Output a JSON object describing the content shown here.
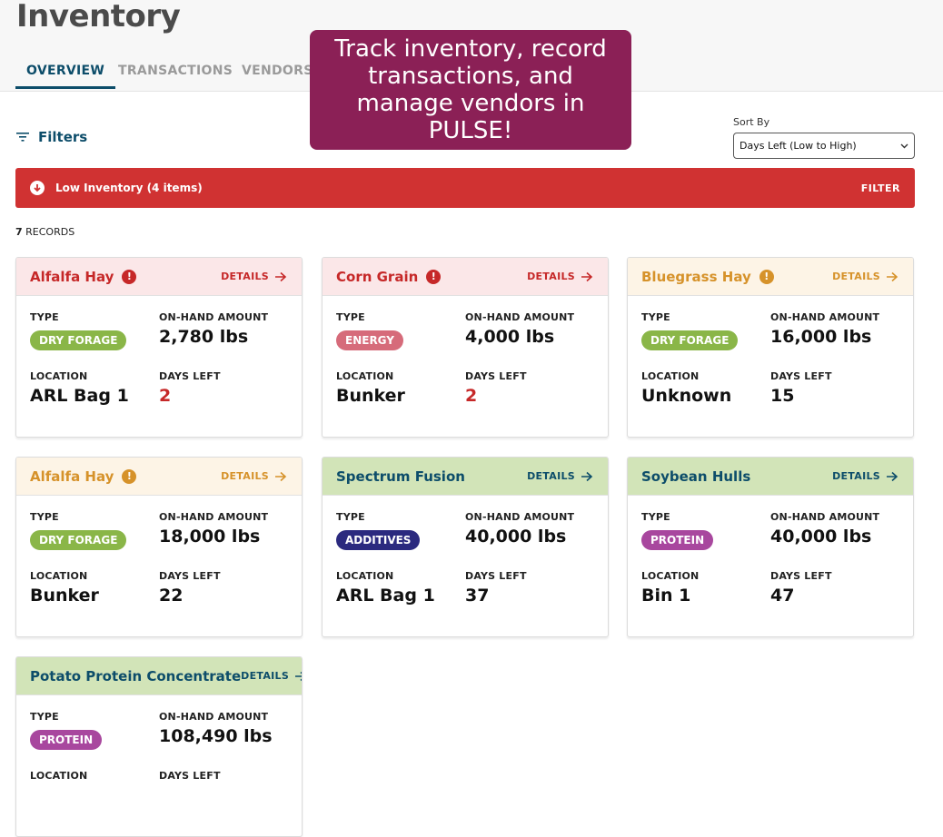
{
  "header": {
    "title": "Inventory",
    "tabs": [
      {
        "label": "OVERVIEW",
        "active": true
      },
      {
        "label": "TRANSACTIONS",
        "active": false
      },
      {
        "label": "VENDORS",
        "active": false
      }
    ]
  },
  "callout": {
    "text": "Track inventory, record transactions, and manage vendors in PULSE!"
  },
  "toolbar": {
    "filters_label": "Filters",
    "sort_label": "Sort By",
    "sort_value": "Days Left (Low to High)"
  },
  "alert": {
    "text": "Low Inventory (4 items)",
    "action": "FILTER"
  },
  "records": {
    "count": "7",
    "label": "RECORDS"
  },
  "labels": {
    "type": "TYPE",
    "on_hand": "ON-HAND AMOUNT",
    "location": "LOCATION",
    "days_left": "DAYS LEFT",
    "details": "DETAILS"
  },
  "colors": {
    "critical_head_bg": "#fbe7e8",
    "critical_title": "#c62828",
    "warning_head_bg": "#fdf4e6",
    "warning_title": "#d6922a",
    "normal_head_bg": "#d2e4b8",
    "normal_title": "#0d4d6a",
    "dry_forage": "#8ab648",
    "energy": "#d66b7a",
    "additives": "#2b2a7f",
    "protein": "#a8479e"
  },
  "cards": [
    {
      "name": "Alfalfa Hay",
      "status": "critical",
      "type": "DRY FORAGE",
      "type_key": "dry_forage",
      "on_hand": "2,780 lbs",
      "location": "ARL Bag 1",
      "days_left": "2"
    },
    {
      "name": "Corn Grain",
      "status": "critical",
      "type": "ENERGY",
      "type_key": "energy",
      "on_hand": "4,000 lbs",
      "location": "Bunker",
      "days_left": "2"
    },
    {
      "name": "Bluegrass Hay",
      "status": "warning",
      "type": "DRY FORAGE",
      "type_key": "dry_forage",
      "on_hand": "16,000 lbs",
      "location": "Unknown",
      "days_left": "15"
    },
    {
      "name": "Alfalfa Hay",
      "status": "warning",
      "type": "DRY FORAGE",
      "type_key": "dry_forage",
      "on_hand": "18,000 lbs",
      "location": "Bunker",
      "days_left": "22"
    },
    {
      "name": "Spectrum Fusion",
      "status": "normal",
      "type": "ADDITIVES",
      "type_key": "additives",
      "on_hand": "40,000 lbs",
      "location": "ARL Bag 1",
      "days_left": "37"
    },
    {
      "name": "Soybean Hulls",
      "status": "normal",
      "type": "PROTEIN",
      "type_key": "protein",
      "on_hand": "40,000 lbs",
      "location": "Bin 1",
      "days_left": "47"
    },
    {
      "name": "Potato Protein Concentrate",
      "status": "normal",
      "type": "PROTEIN",
      "type_key": "protein",
      "on_hand": "108,490 lbs",
      "location": "",
      "days_left": ""
    }
  ]
}
